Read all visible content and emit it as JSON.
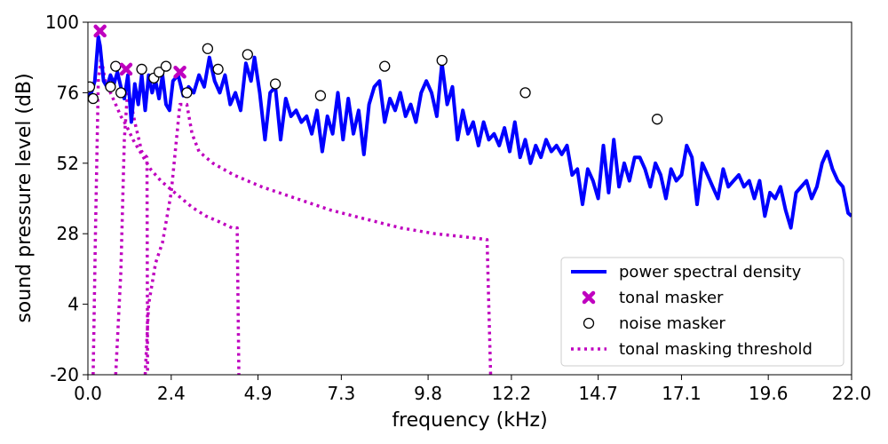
{
  "chart_data": {
    "type": "line",
    "xlabel": "frequency (kHz)",
    "ylabel": "sound pressure level (dB)",
    "xlim": [
      0,
      22.0
    ],
    "ylim": [
      -20,
      100
    ],
    "x_ticks": [
      "0.0",
      "2.4",
      "4.9",
      "7.3",
      "9.8",
      "12.2",
      "14.7",
      "17.1",
      "19.6",
      "22.0"
    ],
    "y_ticks": [
      "-20",
      "4",
      "28",
      "52",
      "76",
      "100"
    ],
    "legend_position": "bottom-right",
    "colors": {
      "psd": "#0000ff",
      "tonal": "#bf00bf",
      "noise": "#000000",
      "threshold": "#bf00bf"
    },
    "legend": [
      {
        "label": "power spectral density",
        "style": "line"
      },
      {
        "label": "tonal masker",
        "style": "x"
      },
      {
        "label": "noise masker",
        "style": "circle"
      },
      {
        "label": "tonal masking threshold",
        "style": "dotted"
      }
    ],
    "psd": {
      "x": [
        0.0,
        0.1,
        0.2,
        0.3,
        0.35,
        0.45,
        0.55,
        0.65,
        0.75,
        0.85,
        0.95,
        1.05,
        1.15,
        1.25,
        1.35,
        1.45,
        1.55,
        1.65,
        1.75,
        1.85,
        1.95,
        2.05,
        2.15,
        2.25,
        2.35,
        2.45,
        2.6,
        2.75,
        2.9,
        3.05,
        3.2,
        3.35,
        3.5,
        3.65,
        3.8,
        3.95,
        4.1,
        4.25,
        4.4,
        4.55,
        4.7,
        4.8,
        4.95,
        5.1,
        5.25,
        5.4,
        5.55,
        5.7,
        5.85,
        6.0,
        6.15,
        6.3,
        6.45,
        6.6,
        6.75,
        6.9,
        7.05,
        7.2,
        7.35,
        7.5,
        7.65,
        7.8,
        7.95,
        8.1,
        8.25,
        8.4,
        8.55,
        8.7,
        8.85,
        9.0,
        9.15,
        9.3,
        9.45,
        9.6,
        9.75,
        9.9,
        10.05,
        10.2,
        10.35,
        10.5,
        10.65,
        10.8,
        10.95,
        11.1,
        11.25,
        11.4,
        11.55,
        11.7,
        11.85,
        12.0,
        12.15,
        12.3,
        12.45,
        12.6,
        12.75,
        12.9,
        13.05,
        13.2,
        13.35,
        13.5,
        13.65,
        13.8,
        13.95,
        14.1,
        14.25,
        14.4,
        14.55,
        14.7,
        14.85,
        15.0,
        15.15,
        15.3,
        15.45,
        15.6,
        15.75,
        15.9,
        16.05,
        16.2,
        16.35,
        16.5,
        16.65,
        16.8,
        16.95,
        17.1,
        17.25,
        17.4,
        17.55,
        17.7,
        17.85,
        18.0,
        18.15,
        18.3,
        18.45,
        18.6,
        18.75,
        18.9,
        19.05,
        19.2,
        19.35,
        19.5,
        19.65,
        19.8,
        19.95,
        20.1,
        20.25,
        20.4,
        20.55,
        20.7,
        20.85,
        21.0,
        21.15,
        21.3,
        21.45,
        21.6,
        21.75,
        21.9,
        22.0
      ],
      "y": [
        75,
        76,
        80,
        95,
        92,
        80,
        78,
        82,
        79,
        83,
        78,
        74,
        82,
        66,
        79,
        72,
        82,
        70,
        82,
        76,
        80,
        74,
        82,
        72,
        70,
        80,
        82,
        75,
        78,
        76,
        82,
        78,
        88,
        80,
        76,
        82,
        72,
        76,
        70,
        86,
        80,
        88,
        76,
        60,
        76,
        78,
        60,
        74,
        68,
        70,
        66,
        68,
        62,
        70,
        56,
        68,
        62,
        76,
        60,
        74,
        62,
        70,
        55,
        72,
        78,
        80,
        66,
        74,
        70,
        76,
        68,
        72,
        66,
        76,
        80,
        76,
        68,
        86,
        72,
        78,
        60,
        70,
        62,
        66,
        58,
        66,
        60,
        62,
        58,
        64,
        56,
        66,
        54,
        60,
        52,
        58,
        54,
        60,
        56,
        58,
        55,
        58,
        48,
        50,
        38,
        50,
        46,
        40,
        58,
        42,
        60,
        44,
        52,
        46,
        54,
        54,
        50,
        44,
        52,
        48,
        40,
        50,
        46,
        48,
        58,
        54,
        38,
        52,
        48,
        44,
        40,
        50,
        44,
        46,
        48,
        44,
        46,
        40,
        46,
        34,
        42,
        40,
        44,
        36,
        30,
        42,
        44,
        46,
        40,
        44,
        52,
        56,
        50,
        46,
        44,
        35,
        34
      ]
    },
    "tonal_maskers": {
      "x": [
        0.35,
        1.1,
        2.65
      ],
      "y": [
        97,
        84,
        83
      ]
    },
    "noise_maskers": {
      "x": [
        0.05,
        0.15,
        0.65,
        0.8,
        0.95,
        1.55,
        1.9,
        2.05,
        2.25,
        2.85,
        3.45,
        3.75,
        4.6,
        5.4,
        6.7,
        8.55,
        10.2,
        12.6,
        16.4
      ],
      "y": [
        78,
        74,
        78,
        85,
        76,
        84,
        81,
        83,
        85,
        76,
        91,
        84,
        89,
        79,
        75,
        85,
        87,
        76,
        67
      ]
    },
    "thresholds": [
      {
        "x": [
          0.15,
          0.22,
          0.3,
          0.38,
          0.5,
          0.65,
          0.8,
          0.95,
          1.1,
          1.3,
          1.55,
          1.8,
          2.1,
          2.4,
          2.7,
          3.0,
          3.4,
          3.8,
          4.15,
          4.3,
          4.35
        ],
        "y": [
          -20,
          30,
          80,
          88,
          80,
          76,
          72,
          68,
          65,
          60,
          55,
          50,
          46,
          43,
          40,
          37,
          34,
          32,
          30,
          30,
          -20
        ]
      },
      {
        "x": [
          0.8,
          0.95,
          1.05,
          1.15,
          1.35,
          1.55,
          1.7,
          1.72
        ],
        "y": [
          -20,
          15,
          60,
          78,
          66,
          56,
          54,
          -20
        ]
      },
      {
        "x": [
          1.65,
          1.75,
          1.95,
          2.15,
          2.4,
          2.65,
          2.85,
          3.0,
          3.2,
          3.6,
          4.2,
          5.0,
          6.0,
          7.0,
          8.0,
          9.0,
          10.0,
          10.8,
          11.5,
          11.6
        ],
        "y": [
          -20,
          4,
          18,
          25,
          42,
          72,
          72,
          62,
          56,
          52,
          48,
          44,
          40,
          36,
          33,
          30,
          28,
          27,
          26,
          -20
        ]
      }
    ]
  }
}
